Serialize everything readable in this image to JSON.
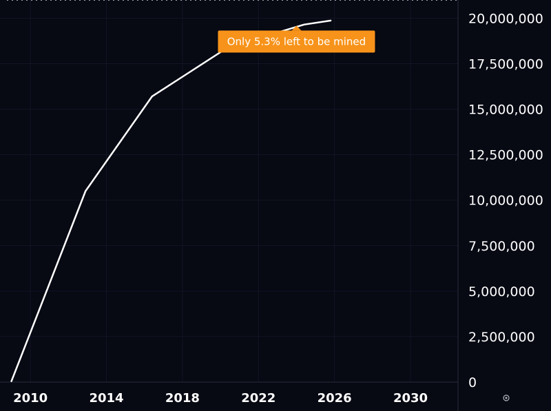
{
  "chart_data": {
    "type": "line",
    "title": "",
    "xlabel": "",
    "ylabel": "",
    "xlim": [
      2008.4,
      2032.5
    ],
    "ylim": [
      0,
      21000000
    ],
    "x_ticks": [
      2010,
      2014,
      2018,
      2022,
      2026,
      2030
    ],
    "x_tick_labels": [
      "2010",
      "2014",
      "2018",
      "2022",
      "2026",
      "2030"
    ],
    "y_ticks": [
      0,
      2500000,
      5000000,
      7500000,
      10000000,
      12500000,
      15000000,
      17500000,
      20000000
    ],
    "y_tick_labels": [
      "0",
      "2,500,000",
      "5,000,000",
      "7,500,000",
      "10,000,000",
      "12,500,000",
      "15,000,000",
      "17,500,000",
      "20,000,000"
    ],
    "max_line": 21000000,
    "grid": true,
    "y_axis_side": "right",
    "series": [
      {
        "color": "#ffffff",
        "x": [
          2009.0,
          2012.9,
          2016.4,
          2020.4,
          2024.4,
          2025.8
        ],
        "y": [
          50000,
          10500000,
          15700000,
          18400000,
          19650000,
          19870000
        ]
      }
    ],
    "annotations": [
      {
        "text": "Only 5.3% left to be mined",
        "x": 2024.0,
        "y": 19700000,
        "color": "#f7931a"
      }
    ],
    "max_line_color": "#d9d9d9",
    "grid_color": "#121624",
    "axis_line_color": "#2a2e39",
    "settings_icon": "settings-gear-icon"
  }
}
